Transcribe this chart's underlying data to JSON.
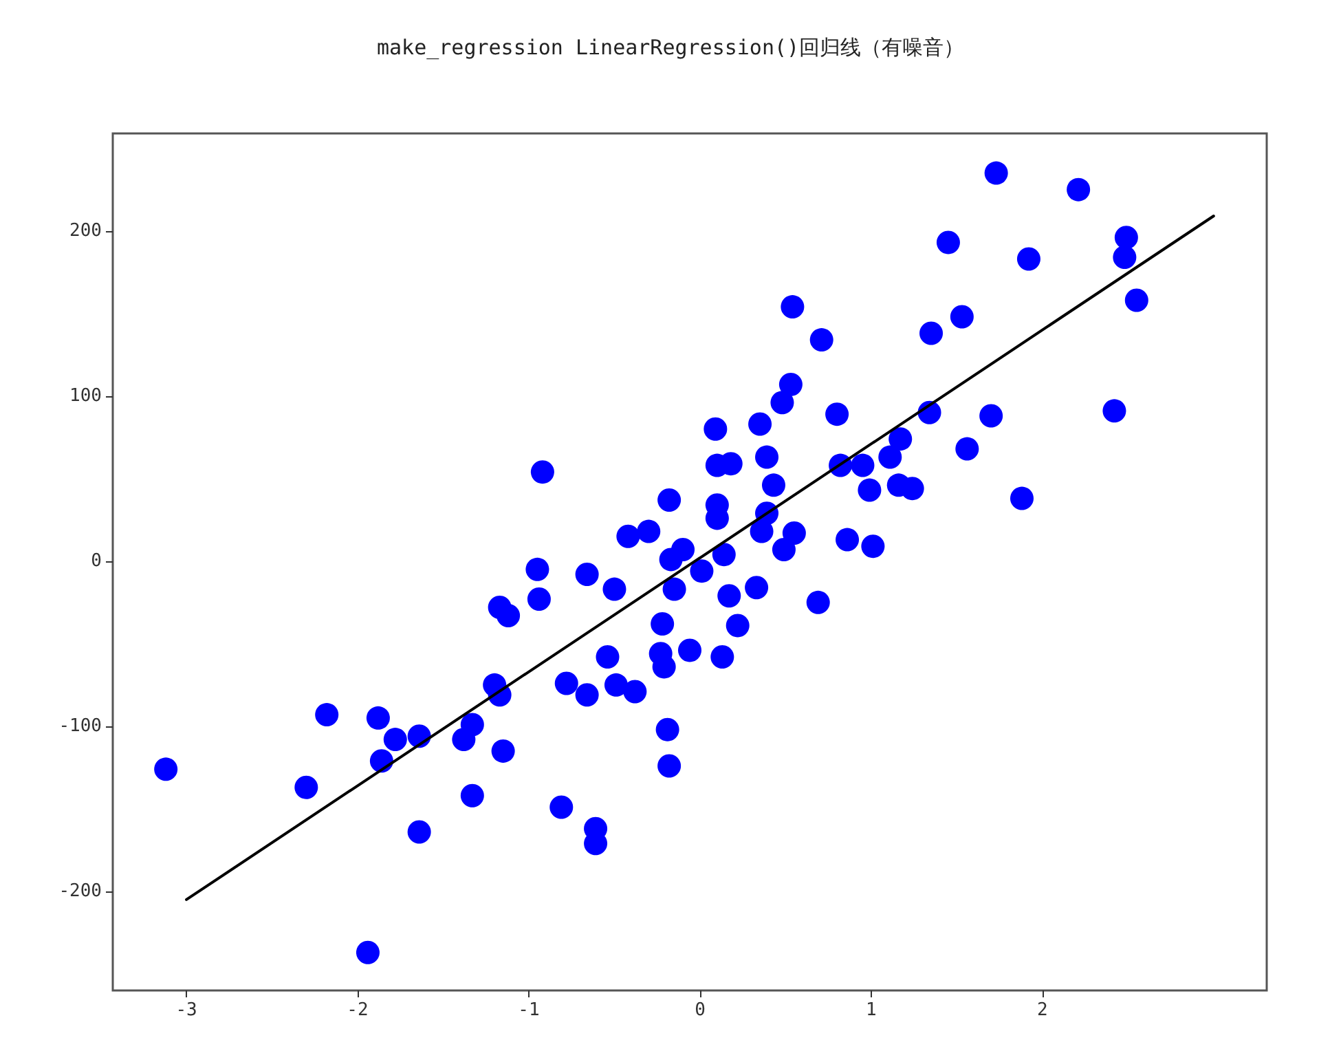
{
  "chart_data": {
    "type": "scatter",
    "title": "make_regression LinearRegression()回归线（有噪音）",
    "xlim": [
      -3.43,
      3.31
    ],
    "xticks": [
      -3,
      -2,
      -1,
      0,
      1,
      2
    ],
    "ylim": [
      -260,
      259
    ],
    "yticks": [
      -200,
      -100,
      0,
      100,
      200
    ],
    "grid": false,
    "marker": "circle",
    "series": [
      {
        "color": "#0000ff",
        "x": [
          -3.12,
          -2.3,
          -2.18,
          -1.88,
          -1.86,
          -1.78,
          -1.64,
          -1.64,
          -1.94,
          -1.38,
          -1.33,
          -1.33,
          -1.15,
          -1.2,
          -1.17,
          -1.17,
          -1.12,
          -0.95,
          -0.94,
          -0.92,
          -0.81,
          -0.61,
          -0.61,
          -0.78,
          -0.66,
          -0.54,
          -0.49,
          -0.38,
          -0.66,
          -0.5,
          -0.42,
          -0.3,
          -0.19,
          -0.18,
          -0.22,
          -0.23,
          -0.21,
          -0.18,
          -0.17,
          -0.15,
          -0.1,
          -0.06,
          0.01,
          0.14,
          0.1,
          0.1,
          0.1,
          0.18,
          0.09,
          0.17,
          0.13,
          0.22,
          0.33,
          0.35,
          0.39,
          0.39,
          0.36,
          0.43,
          0.49,
          0.55,
          0.53,
          0.48,
          0.54,
          0.71,
          0.69,
          0.8,
          0.82,
          0.86,
          0.95,
          0.99,
          1.01,
          1.11,
          1.16,
          1.17,
          1.24,
          1.34,
          1.35,
          1.45,
          1.53,
          1.56,
          1.7,
          1.73,
          1.88,
          1.92,
          2.21,
          2.42,
          2.48,
          2.49,
          2.55
        ],
        "values": [
          -126,
          -137,
          -93,
          -95,
          -121,
          -108,
          -106,
          -164,
          -237,
          -108,
          -99,
          -142,
          -115,
          -75,
          -81,
          -28,
          -33,
          -5,
          -23,
          54,
          -149,
          -162,
          -171,
          -74,
          -81,
          -58,
          -75,
          -79,
          -8,
          -17,
          15,
          18,
          -102,
          -124,
          -38,
          -56,
          -64,
          37,
          1,
          -17,
          7,
          -54,
          -6,
          4,
          34,
          26,
          58,
          59,
          80,
          -21,
          -58,
          -39,
          -16,
          83,
          63,
          29,
          18,
          46,
          7,
          17,
          107,
          96,
          154,
          134,
          -25,
          89,
          58,
          13,
          58,
          43,
          9,
          63,
          46,
          74,
          44,
          90,
          138,
          193,
          148,
          68,
          88,
          235,
          38,
          183,
          225,
          91,
          184,
          196,
          158
        ]
      },
      {
        "type": "line",
        "color": "#000000",
        "marker": "none",
        "x": [
          -3,
          3
        ],
        "values": [
          -205,
          209
        ]
      }
    ]
  }
}
